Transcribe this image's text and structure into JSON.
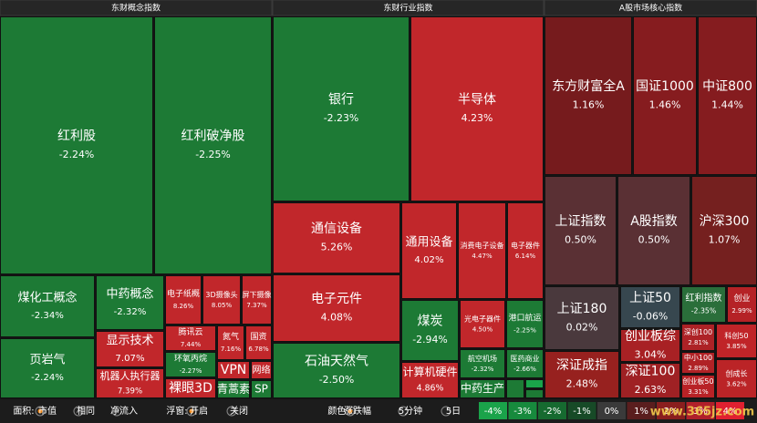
{
  "panels": [
    {
      "title": "东财概念指数",
      "tiles": [
        {
          "name": "红利股",
          "change": "-2.24%"
        },
        {
          "name": "红利破净股",
          "change": "-2.25%"
        },
        {
          "name": "煤化工概念",
          "change": "-2.34%"
        },
        {
          "name": "页岩气",
          "change": "-2.24%"
        },
        {
          "name": "中药概念",
          "change": "-2.32%"
        },
        {
          "name": "显示技术",
          "change": "7.07%"
        },
        {
          "name": "机器人执行器",
          "change": "7.39%"
        },
        {
          "name": "电子纸概",
          "change": "8.26%"
        },
        {
          "name": "3D摄像头",
          "change": "8.05%"
        },
        {
          "name": "屏下摄像",
          "change": "7.37%"
        },
        {
          "name": "腾讯云",
          "change": "7.44%"
        },
        {
          "name": "氮气",
          "change": "7.16%"
        },
        {
          "name": "国资",
          "change": "6.78%"
        },
        {
          "name": "环氧丙烷",
          "change": "-2.27%"
        },
        {
          "name": "裸眼3D"
        },
        {
          "name": "VPN"
        },
        {
          "name": "网络"
        },
        {
          "name": "青蒿素"
        },
        {
          "name": "SP"
        }
      ]
    },
    {
      "title": "东财行业指数",
      "tiles": [
        {
          "name": "银行",
          "change": "-2.23%"
        },
        {
          "name": "半导体",
          "change": "4.23%"
        },
        {
          "name": "通信设备",
          "change": "5.26%"
        },
        {
          "name": "电子元件",
          "change": "4.08%"
        },
        {
          "name": "石油天然气",
          "change": "-2.50%"
        },
        {
          "name": "通用设备",
          "change": "4.02%"
        },
        {
          "name": "消费电子设备",
          "change": "4.47%"
        },
        {
          "name": "电子器件",
          "change": "6.14%"
        },
        {
          "name": "煤炭",
          "change": "-2.94%"
        },
        {
          "name": "计算机硬件",
          "change": "4.86%"
        },
        {
          "name": "光电子器件",
          "change": "4.50%"
        },
        {
          "name": "港口航运",
          "change": "-2.25%"
        },
        {
          "name": "航空机场",
          "change": "-2.32%"
        },
        {
          "name": "医药商业",
          "change": "-2.66%"
        },
        {
          "name": "中药生产"
        }
      ]
    },
    {
      "title": "A股市场核心指数",
      "tiles": [
        {
          "name": "东方财富全A",
          "change": "1.16%"
        },
        {
          "name": "国证1000",
          "change": "1.46%"
        },
        {
          "name": "中证800",
          "change": "1.44%"
        },
        {
          "name": "上证指数",
          "change": "0.50%"
        },
        {
          "name": "A股指数",
          "change": "0.50%"
        },
        {
          "name": "沪深300",
          "change": "1.07%"
        },
        {
          "name": "上证180",
          "change": "0.02%"
        },
        {
          "name": "深证成指",
          "change": "2.48%"
        },
        {
          "name": "上证50",
          "change": "-0.06%"
        },
        {
          "name": "创业板综",
          "change": "3.04%"
        },
        {
          "name": "深证100",
          "change": "2.63%"
        },
        {
          "name": "红利指数",
          "change": "-2.35%"
        },
        {
          "name": "创业",
          "change": "2.99%"
        },
        {
          "name": "深创100",
          "change": "2.81%"
        },
        {
          "name": "中小100",
          "change": "2.89%"
        },
        {
          "name": "创业板50",
          "change": "3.31%"
        },
        {
          "name": "科创50",
          "change": "3.85%"
        },
        {
          "name": "创成长",
          "change": "3.62%"
        }
      ]
    }
  ],
  "controls": [
    {
      "label": "面积:",
      "options": [
        "市值",
        "相同",
        "净流入"
      ]
    },
    {
      "label": "浮窗:",
      "options": [
        "开启",
        "关闭"
      ]
    },
    {
      "label": "颜色:",
      "options": [
        "涨跌幅",
        "5分钟",
        "5日"
      ]
    }
  ],
  "legend": [
    "-4%",
    "-3%",
    "-2%",
    "-1%",
    "0%",
    "1%",
    "2%",
    "3%",
    "4%"
  ],
  "watermark": "www.365jz.com"
}
